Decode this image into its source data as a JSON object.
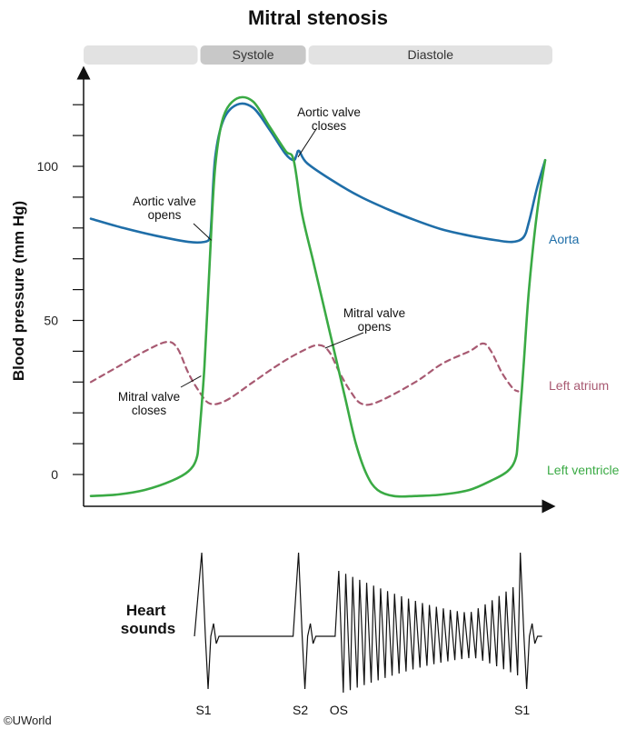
{
  "chart_data": {
    "type": "line",
    "title": "Mitral stenosis",
    "phases": [
      {
        "label": "",
        "start": 0.0,
        "end": 0.2
      },
      {
        "label": "Systole",
        "start": 0.2,
        "end": 0.4
      },
      {
        "label": "Diastole",
        "start": 0.4,
        "end": 0.85
      }
    ],
    "xlabel": "",
    "ylabel": "Blood pressure (mm Hg)",
    "xlim": [
      0,
      0.85
    ],
    "ylim": [
      -10,
      130
    ],
    "yticks": [
      0,
      10,
      20,
      30,
      40,
      50,
      60,
      70,
      80,
      90,
      100,
      110,
      120
    ],
    "ytick_labels": [
      {
        "value": 0,
        "label": "0"
      },
      {
        "value": 50,
        "label": "50"
      },
      {
        "value": 100,
        "label": "100"
      }
    ],
    "grid": false,
    "series": [
      {
        "name": "Aorta",
        "color": "#1f6ea8",
        "dashed": false,
        "points": [
          [
            0.0,
            83
          ],
          [
            0.06,
            80
          ],
          [
            0.12,
            77.5
          ],
          [
            0.18,
            75.5
          ],
          [
            0.21,
            75.5
          ],
          [
            0.22,
            77
          ],
          [
            0.223,
            83
          ],
          [
            0.23,
            103
          ],
          [
            0.245,
            115
          ],
          [
            0.27,
            120
          ],
          [
            0.3,
            119
          ],
          [
            0.33,
            112
          ],
          [
            0.36,
            104
          ],
          [
            0.375,
            102
          ],
          [
            0.38,
            103.5
          ],
          [
            0.385,
            105
          ],
          [
            0.4,
            101
          ],
          [
            0.45,
            95
          ],
          [
            0.5,
            90
          ],
          [
            0.55,
            86
          ],
          [
            0.6,
            82.5
          ],
          [
            0.65,
            79.5
          ],
          [
            0.7,
            77.5
          ],
          [
            0.75,
            76
          ],
          [
            0.78,
            75.5
          ],
          [
            0.8,
            77
          ],
          [
            0.81,
            82
          ],
          [
            0.825,
            93
          ],
          [
            0.84,
            102
          ]
        ]
      },
      {
        "name": "Left atrium",
        "color": "#a85a72",
        "dashed": true,
        "points": [
          [
            0.0,
            30
          ],
          [
            0.05,
            35
          ],
          [
            0.1,
            40
          ],
          [
            0.14,
            43
          ],
          [
            0.16,
            41
          ],
          [
            0.18,
            33
          ],
          [
            0.2,
            27
          ],
          [
            0.22,
            23
          ],
          [
            0.25,
            24
          ],
          [
            0.3,
            30
          ],
          [
            0.35,
            36
          ],
          [
            0.39,
            40
          ],
          [
            0.42,
            42
          ],
          [
            0.44,
            40
          ],
          [
            0.46,
            33
          ],
          [
            0.48,
            27
          ],
          [
            0.5,
            23
          ],
          [
            0.53,
            23.5
          ],
          [
            0.6,
            30
          ],
          [
            0.65,
            36
          ],
          [
            0.7,
            40
          ],
          [
            0.725,
            42.5
          ],
          [
            0.74,
            40
          ],
          [
            0.76,
            33
          ],
          [
            0.78,
            28
          ],
          [
            0.79,
            27
          ]
        ]
      },
      {
        "name": "Left ventricle",
        "color": "#3aaa44",
        "dashed": false,
        "points": [
          [
            0.0,
            -7
          ],
          [
            0.05,
            -6.5
          ],
          [
            0.1,
            -5
          ],
          [
            0.15,
            -2
          ],
          [
            0.18,
            1
          ],
          [
            0.195,
            5
          ],
          [
            0.2,
            12
          ],
          [
            0.21,
            35
          ],
          [
            0.22,
            70
          ],
          [
            0.23,
            100
          ],
          [
            0.245,
            116
          ],
          [
            0.27,
            122
          ],
          [
            0.3,
            121
          ],
          [
            0.33,
            113
          ],
          [
            0.36,
            105
          ],
          [
            0.375,
            102
          ],
          [
            0.39,
            85
          ],
          [
            0.41,
            70
          ],
          [
            0.43,
            55
          ],
          [
            0.45,
            40
          ],
          [
            0.47,
            25
          ],
          [
            0.49,
            10
          ],
          [
            0.51,
            0
          ],
          [
            0.53,
            -5
          ],
          [
            0.56,
            -7
          ],
          [
            0.6,
            -7
          ],
          [
            0.65,
            -6.5
          ],
          [
            0.7,
            -5
          ],
          [
            0.74,
            -2
          ],
          [
            0.77,
            1
          ],
          [
            0.785,
            5
          ],
          [
            0.79,
            12
          ],
          [
            0.8,
            35
          ],
          [
            0.81,
            60
          ],
          [
            0.825,
            85
          ],
          [
            0.84,
            102
          ]
        ]
      }
    ],
    "annotations": [
      {
        "lines": [
          "Aortic valve",
          "closes"
        ],
        "x": 0.383,
        "y": 103
      },
      {
        "lines": [
          "Aortic valve",
          "opens"
        ],
        "x": 0.223,
        "y": 76
      },
      {
        "lines": [
          "Mitral valve",
          "opens"
        ],
        "x": 0.433,
        "y": 41
      },
      {
        "lines": [
          "Mitral valve",
          "closes"
        ],
        "x": 0.204,
        "y": 32
      }
    ],
    "heart_sounds": {
      "title_lines": [
        "Heart",
        "sounds"
      ],
      "events": [
        {
          "label": "S1",
          "x": 0.205
        },
        {
          "label": "S2",
          "x": 0.384
        },
        {
          "label": "OS",
          "x": 0.455
        },
        {
          "label": "S1",
          "x": 0.794
        }
      ],
      "murmur": {
        "start": 0.455,
        "end": 0.794
      }
    }
  },
  "footer": {
    "copyright": "©UWorld"
  }
}
